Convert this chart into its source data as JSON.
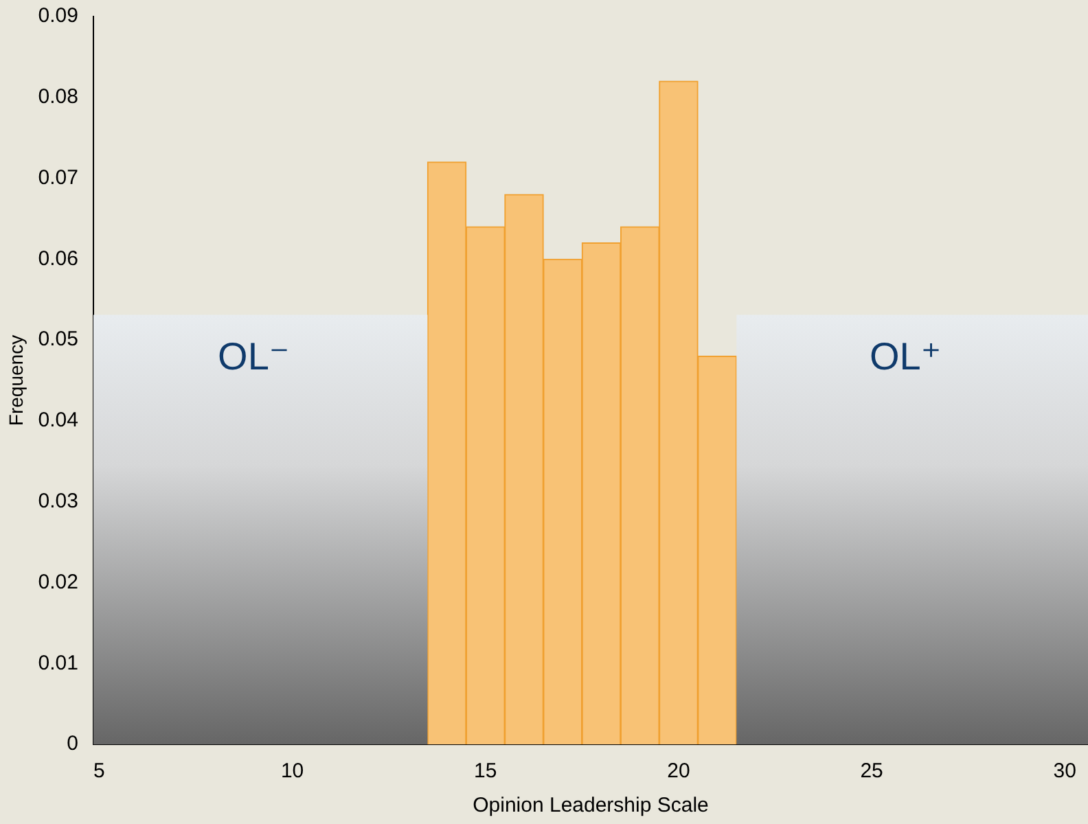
{
  "chart_data": {
    "type": "histogram",
    "xlabel": "Opinion Leadership Scale",
    "ylabel": "Frequency",
    "bins": [
      13.5,
      14.5,
      15.5,
      16.5,
      17.5,
      18.5,
      19.5,
      20.5,
      21.5
    ],
    "values": [
      0.072,
      0.064,
      0.068,
      0.06,
      0.062,
      0.064,
      0.082,
      0.048
    ],
    "color": "#f8c275",
    "xlim": [
      4.85,
      30.6
    ],
    "xticks": [
      5,
      10,
      15,
      20,
      25,
      30
    ],
    "ylim": [
      0,
      0.09
    ],
    "yticks": [
      0,
      0.01,
      0.02,
      0.03,
      0.04,
      0.05,
      0.06,
      0.07,
      0.08,
      0.09
    ],
    "bands": [
      {
        "axis": "x",
        "from": 4.85,
        "to": 13.5,
        "label": "OL⁻",
        "color": "#e8ecef"
      },
      {
        "axis": "x",
        "from": 21.5,
        "to": 30.6,
        "label": "OL⁺",
        "color": "#e8ecef"
      }
    ],
    "grid": false,
    "legend": false
  }
}
